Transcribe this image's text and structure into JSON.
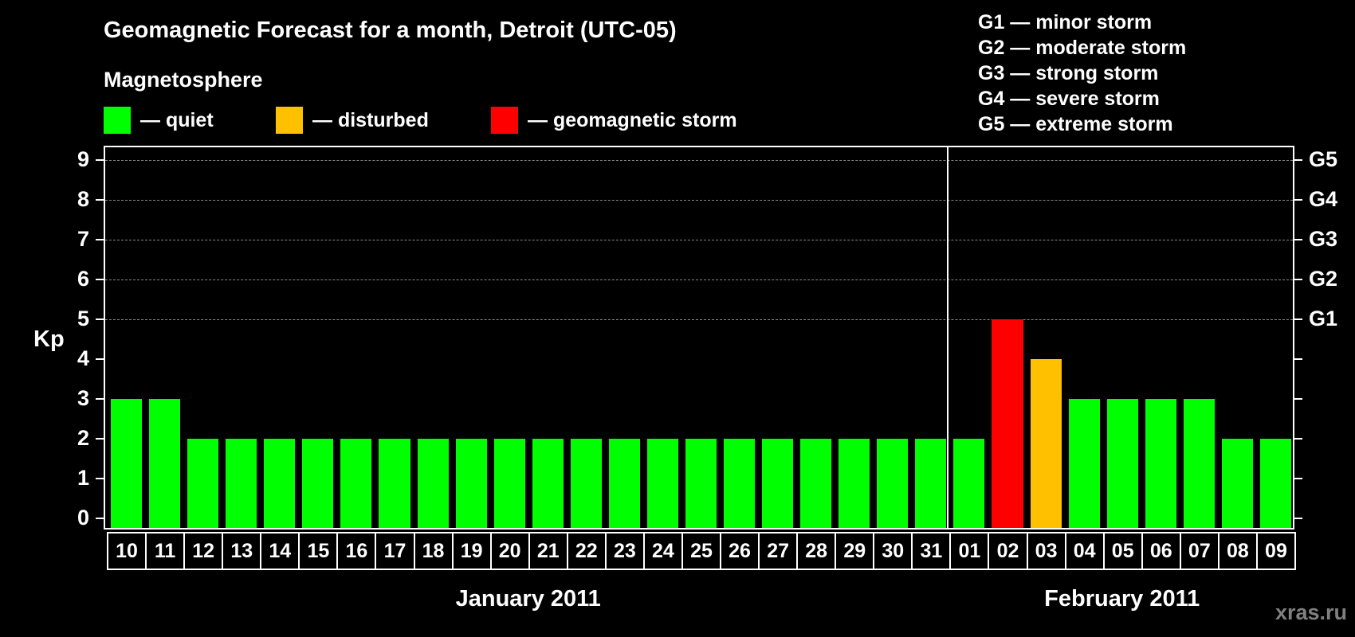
{
  "chart_data": {
    "type": "bar",
    "title": "Geomagnetic Forecast for a month, Detroit (UTC-05)",
    "ylabel": "Kp",
    "xlabel": "",
    "ylim": [
      0,
      9
    ],
    "grid": true,
    "categories": [
      "10",
      "11",
      "12",
      "13",
      "14",
      "15",
      "16",
      "17",
      "18",
      "19",
      "20",
      "21",
      "22",
      "23",
      "24",
      "25",
      "26",
      "27",
      "28",
      "29",
      "30",
      "31",
      "01",
      "02",
      "03",
      "04",
      "05",
      "06",
      "07",
      "08",
      "09"
    ],
    "values": [
      3,
      3,
      2,
      2,
      2,
      2,
      2,
      2,
      2,
      2,
      2,
      2,
      2,
      2,
      2,
      2,
      2,
      2,
      2,
      2,
      2,
      2,
      2,
      5,
      4,
      3,
      3,
      3,
      3,
      2,
      2
    ],
    "status": [
      "quiet",
      "quiet",
      "quiet",
      "quiet",
      "quiet",
      "quiet",
      "quiet",
      "quiet",
      "quiet",
      "quiet",
      "quiet",
      "quiet",
      "quiet",
      "quiet",
      "quiet",
      "quiet",
      "quiet",
      "quiet",
      "quiet",
      "quiet",
      "quiet",
      "quiet",
      "quiet",
      "storm",
      "disturbed",
      "quiet",
      "quiet",
      "quiet",
      "quiet",
      "quiet",
      "quiet"
    ],
    "months": [
      {
        "label": "January 2011",
        "start_index": 0,
        "count": 22
      },
      {
        "label": "February 2011",
        "start_index": 22,
        "count": 9
      }
    ],
    "y_ticks": [
      "0",
      "1",
      "2",
      "3",
      "4",
      "5",
      "6",
      "7",
      "8",
      "9"
    ],
    "right_ticks": [
      {
        "kp": 5,
        "label": "G1"
      },
      {
        "kp": 6,
        "label": "G2"
      },
      {
        "kp": 7,
        "label": "G3"
      },
      {
        "kp": 8,
        "label": "G4"
      },
      {
        "kp": 9,
        "label": "G5"
      }
    ]
  },
  "header": {
    "title": "Geomagnetic Forecast for a month, Detroit (UTC-05)",
    "section": "Magnetosphere"
  },
  "legend": [
    {
      "label": "— quiet",
      "color": "#00ff00"
    },
    {
      "label": "— disturbed",
      "color": "#ffc000"
    },
    {
      "label": "— geomagnetic storm",
      "color": "#ff0000"
    }
  ],
  "g_scale": [
    "G1 — minor storm",
    "G2 — moderate storm",
    "G3 — strong storm",
    "G4 — severe storm",
    "G5 — extreme storm"
  ],
  "colors": {
    "quiet": "#00ff00",
    "disturbed": "#ffc000",
    "storm": "#ff0000"
  },
  "axis": {
    "ylabel": "Kp"
  },
  "watermark": "xras.ru"
}
